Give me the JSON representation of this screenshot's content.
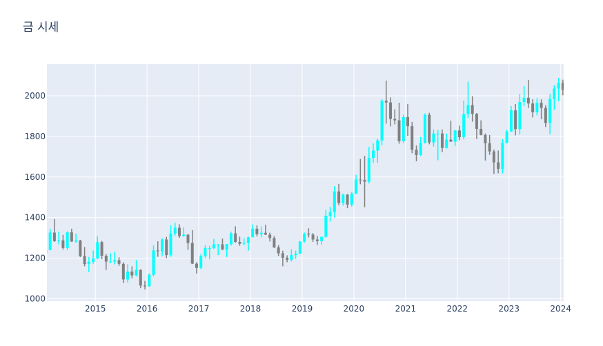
{
  "chart_data": {
    "type": "candlestick",
    "title": "금 시세",
    "xlabel": "",
    "ylabel": "",
    "xlim": [
      "2014-01-24",
      "2024-01-22"
    ],
    "ylim": [
      988,
      2156
    ],
    "grid": true,
    "legend": "none",
    "x_ticks": [
      "2015",
      "2016",
      "2017",
      "2018",
      "2019",
      "2020",
      "2021",
      "2022",
      "2023",
      "2024"
    ],
    "y_ticks": [
      1000,
      1200,
      1400,
      1600,
      1800,
      2000
    ],
    "colors": {
      "increasing": "#00FFFF",
      "decreasing": "#808080",
      "plot_bg": "#E5ECF6",
      "grid": "#FFFFFF"
    },
    "start_month": "2014-01",
    "ohlc": [
      [
        1225,
        1270,
        1220,
        1240
      ],
      [
        1240,
        1345,
        1238,
        1326
      ],
      [
        1326,
        1392,
        1280,
        1284
      ],
      [
        1284,
        1331,
        1268,
        1288
      ],
      [
        1288,
        1315,
        1242,
        1250
      ],
      [
        1250,
        1332,
        1240,
        1327
      ],
      [
        1327,
        1345,
        1280,
        1282
      ],
      [
        1282,
        1320,
        1275,
        1287
      ],
      [
        1287,
        1290,
        1205,
        1211
      ],
      [
        1211,
        1255,
        1160,
        1171
      ],
      [
        1171,
        1206,
        1131,
        1182
      ],
      [
        1182,
        1238,
        1172,
        1199
      ],
      [
        1199,
        1308,
        1195,
        1279
      ],
      [
        1279,
        1285,
        1195,
        1212
      ],
      [
        1212,
        1220,
        1142,
        1183
      ],
      [
        1183,
        1225,
        1175,
        1183
      ],
      [
        1183,
        1232,
        1170,
        1190
      ],
      [
        1190,
        1205,
        1162,
        1172
      ],
      [
        1172,
        1180,
        1077,
        1095
      ],
      [
        1095,
        1170,
        1080,
        1134
      ],
      [
        1134,
        1160,
        1100,
        1115
      ],
      [
        1115,
        1191,
        1110,
        1142
      ],
      [
        1142,
        1145,
        1052,
        1065
      ],
      [
        1065,
        1088,
        1046,
        1061
      ],
      [
        1061,
        1125,
        1060,
        1118
      ],
      [
        1118,
        1263,
        1110,
        1238
      ],
      [
        1238,
        1283,
        1207,
        1234
      ],
      [
        1234,
        1297,
        1210,
        1292
      ],
      [
        1292,
        1305,
        1200,
        1215
      ],
      [
        1215,
        1362,
        1207,
        1321
      ],
      [
        1321,
        1375,
        1310,
        1350
      ],
      [
        1350,
        1367,
        1300,
        1309
      ],
      [
        1309,
        1352,
        1305,
        1316
      ],
      [
        1316,
        1318,
        1241,
        1275
      ],
      [
        1275,
        1338,
        1171,
        1173
      ],
      [
        1173,
        1180,
        1124,
        1152
      ],
      [
        1152,
        1220,
        1146,
        1211
      ],
      [
        1211,
        1264,
        1200,
        1249
      ],
      [
        1249,
        1261,
        1195,
        1249
      ],
      [
        1249,
        1295,
        1245,
        1268
      ],
      [
        1268,
        1270,
        1215,
        1268
      ],
      [
        1268,
        1296,
        1240,
        1242
      ],
      [
        1242,
        1270,
        1205,
        1269
      ],
      [
        1269,
        1331,
        1262,
        1322
      ],
      [
        1322,
        1357,
        1276,
        1280
      ],
      [
        1280,
        1306,
        1261,
        1271
      ],
      [
        1271,
        1299,
        1264,
        1275
      ],
      [
        1275,
        1306,
        1237,
        1303
      ],
      [
        1303,
        1366,
        1302,
        1345
      ],
      [
        1345,
        1361,
        1307,
        1318
      ],
      [
        1318,
        1356,
        1303,
        1325
      ],
      [
        1325,
        1365,
        1314,
        1316
      ],
      [
        1316,
        1326,
        1282,
        1299
      ],
      [
        1299,
        1309,
        1250,
        1253
      ],
      [
        1253,
        1265,
        1211,
        1224
      ],
      [
        1224,
        1237,
        1160,
        1202
      ],
      [
        1202,
        1214,
        1180,
        1192
      ],
      [
        1192,
        1243,
        1183,
        1215
      ],
      [
        1215,
        1237,
        1196,
        1222
      ],
      [
        1222,
        1284,
        1221,
        1282
      ],
      [
        1282,
        1326,
        1276,
        1321
      ],
      [
        1321,
        1347,
        1302,
        1316
      ],
      [
        1316,
        1324,
        1280,
        1292
      ],
      [
        1292,
        1310,
        1266,
        1284
      ],
      [
        1284,
        1306,
        1266,
        1305
      ],
      [
        1305,
        1439,
        1301,
        1409
      ],
      [
        1409,
        1453,
        1381,
        1427
      ],
      [
        1427,
        1555,
        1400,
        1529
      ],
      [
        1529,
        1566,
        1460,
        1472
      ],
      [
        1472,
        1518,
        1459,
        1513
      ],
      [
        1513,
        1516,
        1446,
        1464
      ],
      [
        1464,
        1525,
        1454,
        1517
      ],
      [
        1517,
        1611,
        1517,
        1587
      ],
      [
        1587,
        1689,
        1564,
        1585
      ],
      [
        1585,
        1704,
        1451,
        1577
      ],
      [
        1577,
        1748,
        1568,
        1694
      ],
      [
        1694,
        1765,
        1670,
        1730
      ],
      [
        1730,
        1789,
        1670,
        1780
      ],
      [
        1780,
        1984,
        1757,
        1975
      ],
      [
        1975,
        2075,
        1863,
        1967
      ],
      [
        1967,
        1992,
        1849,
        1886
      ],
      [
        1886,
        1933,
        1859,
        1879
      ],
      [
        1879,
        1966,
        1764,
        1776
      ],
      [
        1776,
        1906,
        1767,
        1895
      ],
      [
        1895,
        1959,
        1802,
        1850
      ],
      [
        1850,
        1871,
        1717,
        1734
      ],
      [
        1734,
        1755,
        1677,
        1708
      ],
      [
        1708,
        1798,
        1704,
        1768
      ],
      [
        1768,
        1913,
        1765,
        1906
      ],
      [
        1906,
        1916,
        1761,
        1770
      ],
      [
        1770,
        1834,
        1750,
        1814
      ],
      [
        1814,
        1831,
        1682,
        1814
      ],
      [
        1814,
        1834,
        1722,
        1743
      ],
      [
        1743,
        1814,
        1740,
        1784
      ],
      [
        1784,
        1877,
        1773,
        1774
      ],
      [
        1774,
        1831,
        1753,
        1829
      ],
      [
        1829,
        1853,
        1781,
        1796
      ],
      [
        1796,
        1976,
        1785,
        1909
      ],
      [
        1909,
        2070,
        1890,
        1954
      ],
      [
        1954,
        1998,
        1872,
        1911
      ],
      [
        1911,
        1915,
        1787,
        1837
      ],
      [
        1837,
        1879,
        1805,
        1807
      ],
      [
        1807,
        1814,
        1681,
        1766
      ],
      [
        1766,
        1807,
        1709,
        1726
      ],
      [
        1726,
        1735,
        1615,
        1672
      ],
      [
        1672,
        1730,
        1618,
        1640
      ],
      [
        1640,
        1786,
        1617,
        1768
      ],
      [
        1768,
        1833,
        1765,
        1824
      ],
      [
        1824,
        1949,
        1823,
        1928
      ],
      [
        1928,
        1959,
        1805,
        1836
      ],
      [
        1836,
        2009,
        1809,
        1969
      ],
      [
        1969,
        2048,
        1949,
        1990
      ],
      [
        1990,
        2078,
        1939,
        1962
      ],
      [
        1962,
        1983,
        1893,
        1919
      ],
      [
        1919,
        1987,
        1903,
        1965
      ],
      [
        1965,
        1982,
        1884,
        1940
      ],
      [
        1940,
        1953,
        1846,
        1866
      ],
      [
        1866,
        2009,
        1810,
        1983
      ],
      [
        1983,
        2052,
        1931,
        2036
      ],
      [
        2036,
        2088,
        1973,
        2063
      ],
      [
        2063,
        2079,
        2002,
        2030
      ]
    ]
  }
}
